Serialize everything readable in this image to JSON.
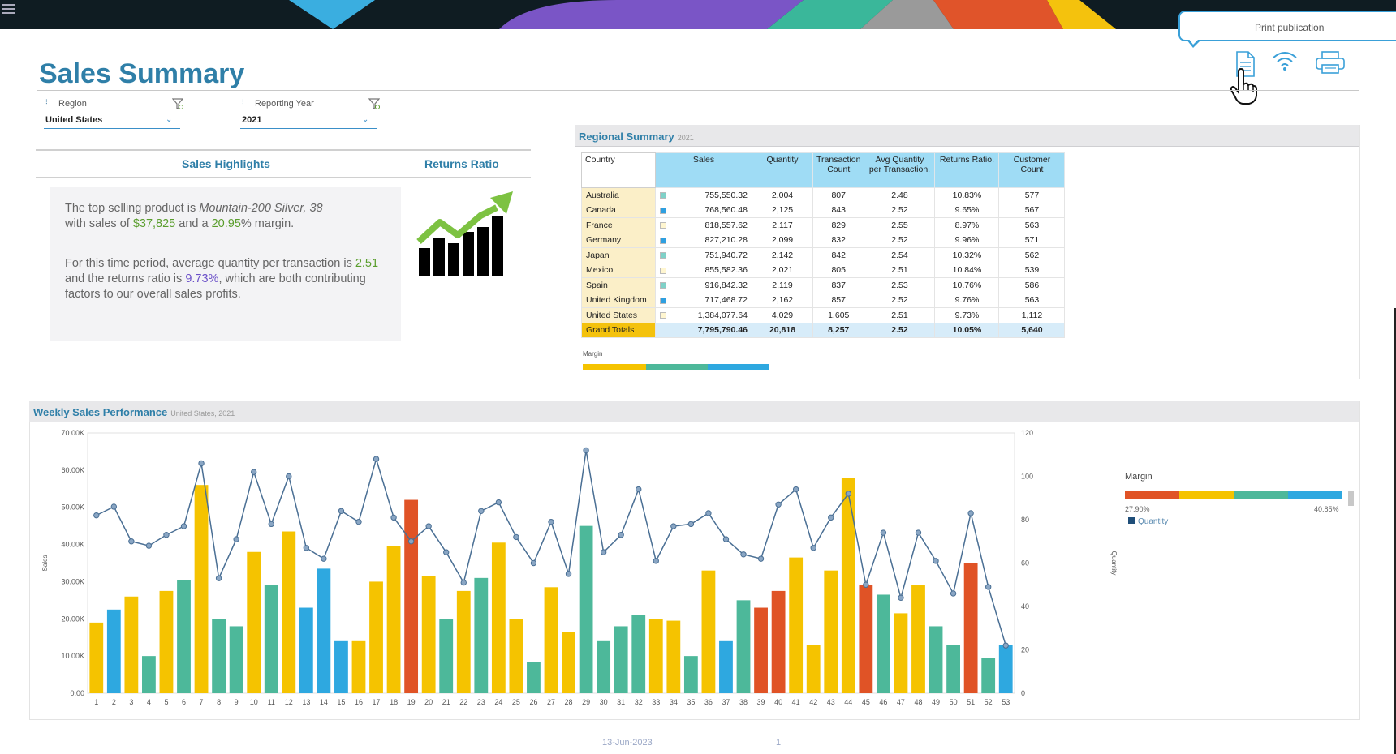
{
  "app": {
    "title": "Sales Summary",
    "tooltip": "Print publication"
  },
  "filters": [
    {
      "label": "Region",
      "value": "United States"
    },
    {
      "label": "Reporting Year",
      "value": "2021"
    }
  ],
  "highlights": {
    "header_left": "Sales Highlights",
    "header_right": "Returns Ratio",
    "p1_a": "The top selling product is ",
    "p1_product": "Mountain-200 Silver, 38",
    "p1_b": "with sales of ",
    "p1_sales": "$37,825",
    "p1_c": " and a ",
    "p1_margin": "20.95",
    "p1_d": "% margin.",
    "p2_a": "For this time period, average quantity per transaction is ",
    "p2_qty": "2.51",
    "p2_b": " and the returns ratio is ",
    "p2_ratio": "9.73%",
    "p2_c": ", which are both contributing factors to our overall sales profits."
  },
  "regional": {
    "title": "Regional Summary",
    "subtitle": "2021",
    "headers": [
      "Country",
      "Sales",
      "Quantity",
      "Transaction Count",
      "Avg Quantity per Transaction.",
      "Returns Ratio.",
      "Customer Count"
    ],
    "rows": [
      {
        "country": "Australia",
        "sales": "755,550.32",
        "qty": "2,004",
        "tx": "807",
        "avg": "2.48",
        "ret": "10.83%",
        "cust": "577",
        "swatch": "#7fd1c8"
      },
      {
        "country": "Canada",
        "sales": "768,560.48",
        "qty": "2,125",
        "tx": "843",
        "avg": "2.52",
        "ret": "9.65%",
        "cust": "567",
        "swatch": "#2e9fe0"
      },
      {
        "country": "France",
        "sales": "818,557.62",
        "qty": "2,117",
        "tx": "829",
        "avg": "2.55",
        "ret": "8.97%",
        "cust": "563",
        "swatch": "#fff6d0"
      },
      {
        "country": "Germany",
        "sales": "827,210.28",
        "qty": "2,099",
        "tx": "832",
        "avg": "2.52",
        "ret": "9.96%",
        "cust": "571",
        "swatch": "#2e9fe0"
      },
      {
        "country": "Japan",
        "sales": "751,940.72",
        "qty": "2,142",
        "tx": "842",
        "avg": "2.54",
        "ret": "10.32%",
        "cust": "562",
        "swatch": "#7fd1c8"
      },
      {
        "country": "Mexico",
        "sales": "855,582.36",
        "qty": "2,021",
        "tx": "805",
        "avg": "2.51",
        "ret": "10.84%",
        "cust": "539",
        "swatch": "#fff6d0"
      },
      {
        "country": "Spain",
        "sales": "916,842.32",
        "qty": "2,119",
        "tx": "837",
        "avg": "2.53",
        "ret": "10.76%",
        "cust": "586",
        "swatch": "#7fd1c8"
      },
      {
        "country": "United Kingdom",
        "sales": "717,468.72",
        "qty": "2,162",
        "tx": "857",
        "avg": "2.52",
        "ret": "9.76%",
        "cust": "563",
        "swatch": "#2e9fe0"
      },
      {
        "country": "United States",
        "sales": "1,384,077.64",
        "qty": "4,029",
        "tx": "1,605",
        "avg": "2.51",
        "ret": "9.73%",
        "cust": "1,112",
        "swatch": "#fff6d0"
      }
    ],
    "totals": {
      "country": "Grand Totals",
      "sales": "7,795,790.46",
      "qty": "20,818",
      "tx": "8,257",
      "avg": "2.52",
      "ret": "10.05%",
      "cust": "5,640"
    },
    "margin_label": "Margin"
  },
  "weekly": {
    "title": "Weekly Sales Performance",
    "subtitle": "United States, 2021",
    "legend_title": "Margin",
    "legend_min": "27.90%",
    "legend_max": "40.85%",
    "legend_series": "Quantity"
  },
  "footer": {
    "date": "13-Jun-2023",
    "page": "1"
  },
  "colors": {
    "yellow": "#f5c300",
    "teal": "#4db89a",
    "blue": "#2ea8e0",
    "red": "#e05326",
    "line": "#4a6f94",
    "title": "#2f7fa8"
  },
  "icons": [
    "menu-icon",
    "document-icon",
    "wifi-icon",
    "printer-icon",
    "pointer-hand-icon",
    "filter-icon",
    "trend-chart-icon"
  ],
  "chart_data": {
    "type": "bar",
    "title": "Weekly Sales Performance",
    "xlabel": "",
    "ylabel": "Sales",
    "y2label": "Quantity",
    "ylim": [
      0,
      70000
    ],
    "y2lim": [
      0,
      120
    ],
    "y_ticks": [
      "0.00",
      "10.00K",
      "20.00K",
      "30.00K",
      "40.00K",
      "50.00K",
      "60.00K",
      "70.00K"
    ],
    "y2_ticks": [
      "0",
      "20",
      "40",
      "60",
      "80",
      "100",
      "120"
    ],
    "categories": [
      "1",
      "2",
      "3",
      "4",
      "5",
      "6",
      "7",
      "8",
      "9",
      "10",
      "11",
      "12",
      "13",
      "14",
      "15",
      "16",
      "17",
      "18",
      "19",
      "20",
      "21",
      "22",
      "23",
      "24",
      "25",
      "26",
      "27",
      "28",
      "29",
      "30",
      "31",
      "32",
      "33",
      "34",
      "35",
      "36",
      "37",
      "38",
      "39",
      "40",
      "41",
      "42",
      "43",
      "44",
      "45",
      "46",
      "47",
      "48",
      "49",
      "50",
      "51",
      "52",
      "53"
    ],
    "series": [
      {
        "name": "Sales",
        "type": "bar",
        "values": [
          19000,
          22500,
          26000,
          10000,
          27500,
          30500,
          56000,
          20000,
          18000,
          38000,
          29000,
          43500,
          23000,
          33500,
          14000,
          14000,
          30000,
          39500,
          52000,
          31500,
          20000,
          27500,
          31000,
          40500,
          20000,
          8500,
          28500,
          16500,
          45000,
          14000,
          18000,
          21000,
          20000,
          19500,
          10000,
          33000,
          14000,
          25000,
          23000,
          27500,
          36500,
          13000,
          33000,
          58000,
          29000,
          26500,
          21500,
          29000,
          18000,
          13000,
          35000,
          9500,
          13000
        ],
        "colors": [
          "yellow",
          "blue",
          "yellow",
          "teal",
          "yellow",
          "teal",
          "yellow",
          "teal",
          "teal",
          "yellow",
          "teal",
          "yellow",
          "blue",
          "blue",
          "blue",
          "yellow",
          "yellow",
          "yellow",
          "red",
          "yellow",
          "teal",
          "yellow",
          "teal",
          "yellow",
          "yellow",
          "teal",
          "yellow",
          "yellow",
          "teal",
          "teal",
          "teal",
          "teal",
          "yellow",
          "yellow",
          "teal",
          "yellow",
          "blue",
          "teal",
          "red",
          "red",
          "yellow",
          "yellow",
          "yellow",
          "yellow",
          "red",
          "teal",
          "yellow",
          "yellow",
          "teal",
          "teal",
          "red",
          "teal",
          "blue"
        ]
      },
      {
        "name": "Quantity",
        "type": "line",
        "values": [
          82,
          86,
          70,
          68,
          73,
          77,
          106,
          53,
          71,
          102,
          78,
          100,
          67,
          62,
          84,
          79,
          108,
          81,
          70,
          77,
          65,
          51,
          84,
          88,
          72,
          60,
          79,
          55,
          112,
          65,
          73,
          94,
          61,
          77,
          78,
          83,
          71,
          64,
          62,
          87,
          94,
          67,
          81,
          92,
          50,
          74,
          44,
          74,
          61,
          46,
          83,
          49,
          22
        ]
      }
    ]
  }
}
